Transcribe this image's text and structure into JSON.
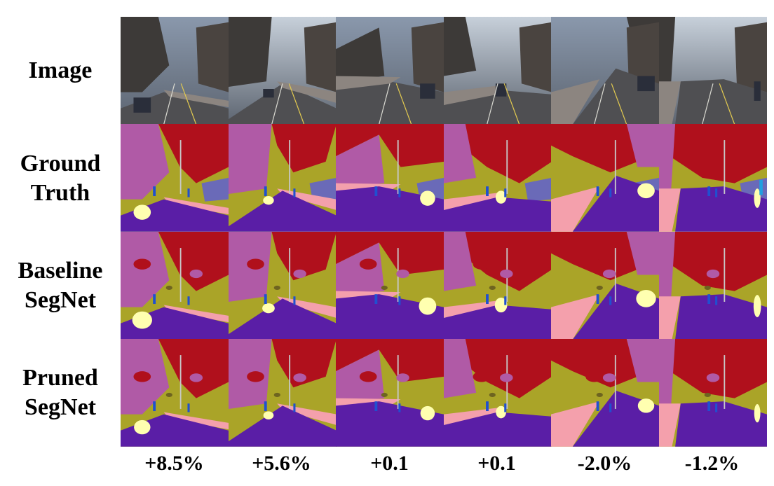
{
  "figure": {
    "row_labels": [
      [
        "Image"
      ],
      [
        "Ground",
        "Truth"
      ],
      [
        "Baseline",
        "SegNet"
      ],
      [
        "Pruned",
        "SegNet"
      ]
    ],
    "column_labels": [
      "+8.5%",
      "+5.6%",
      "+0.1",
      "+0.1",
      "-2.0%",
      "-1.2%"
    ]
  },
  "segmentation_colors": {
    "sky": "#b0101c",
    "building": "#aaa428",
    "tree": "#b05aa6",
    "road": "#5a1ea6",
    "sidewalk": "#f4a0ac",
    "car": "#ffffb0",
    "pedestrian": "#2050d0",
    "wall": "#6a6ab8",
    "pole": "#c8c8c8",
    "sign": "#6e6420",
    "bicyclist": "#20a0e0"
  }
}
